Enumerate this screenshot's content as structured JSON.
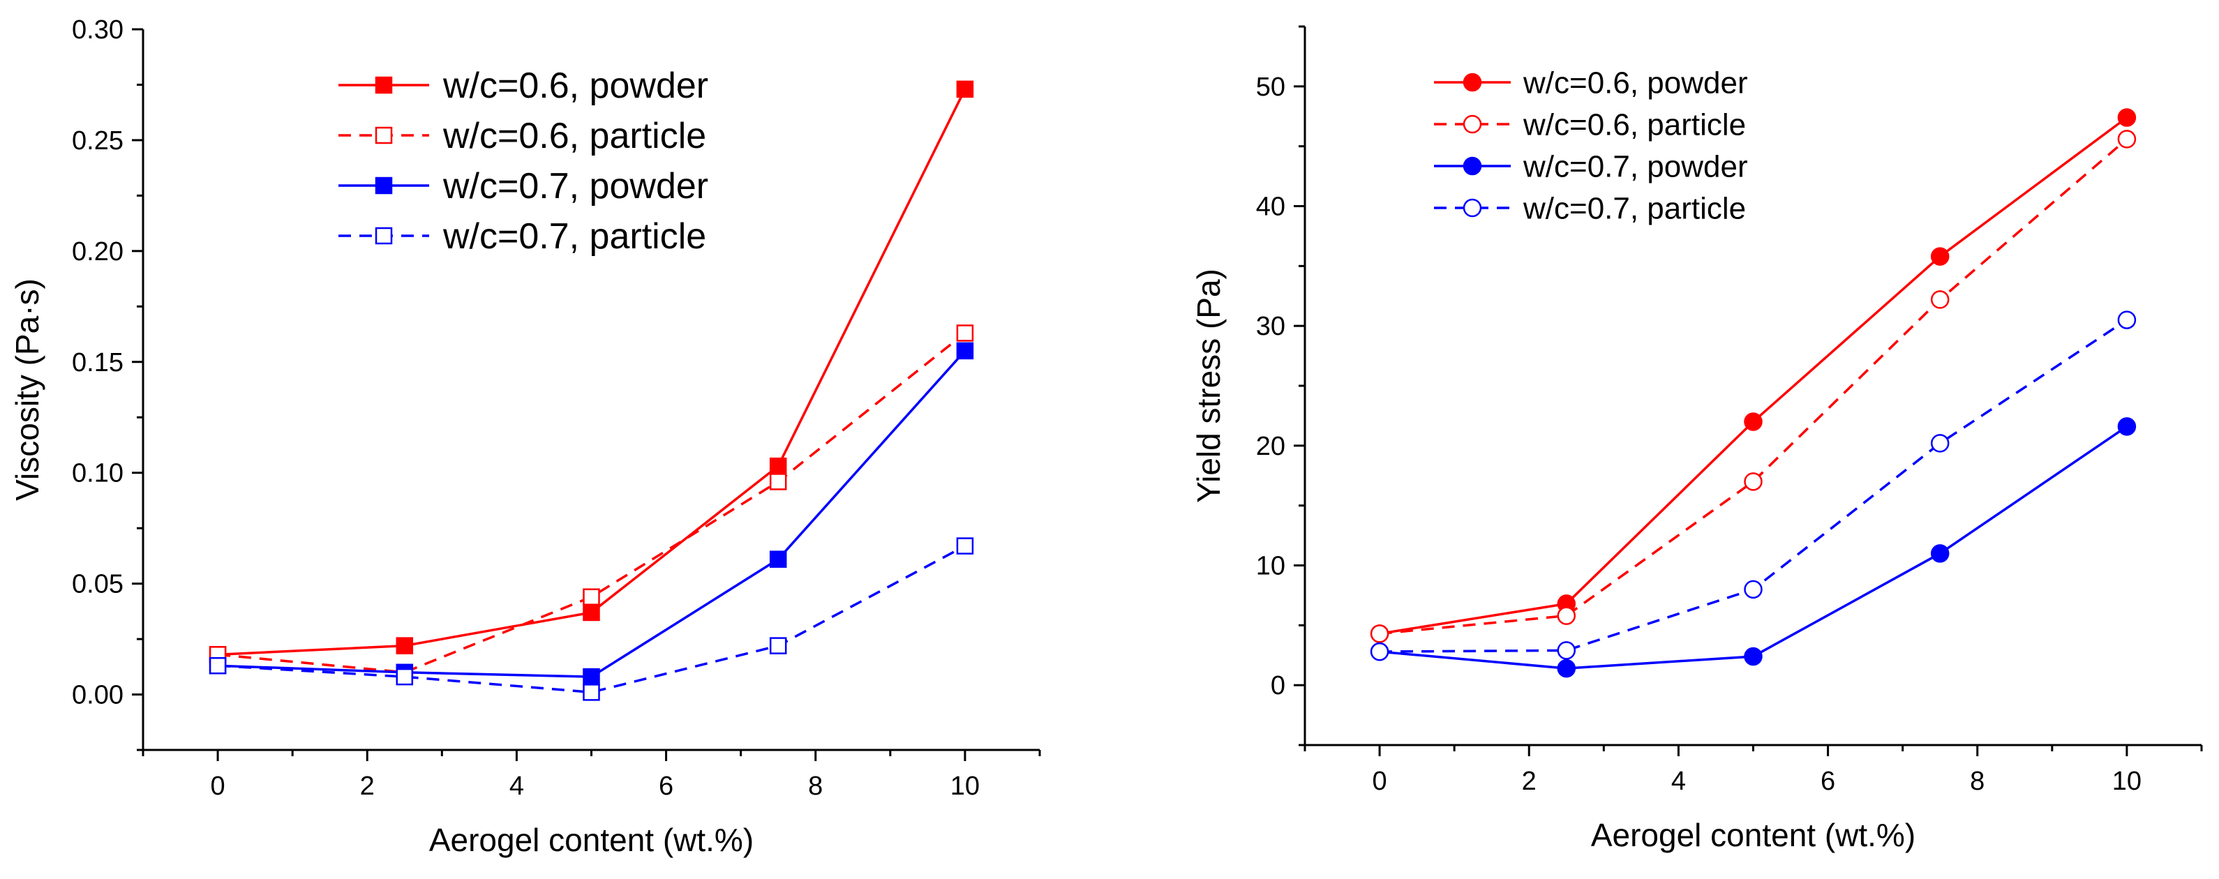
{
  "chart_data": [
    {
      "type": "line",
      "xlabel": "Aerogel content (wt.%)",
      "ylabel": "Viscosity (Pa·s)",
      "xlim": [
        -1,
        11
      ],
      "ylim": [
        -0.025,
        0.3
      ],
      "xticks": [
        0,
        2,
        4,
        6,
        8,
        10
      ],
      "xtick_labels": [
        "0",
        "2",
        "4",
        "6",
        "8",
        "10"
      ],
      "yticks": [
        0,
        0.05,
        0.1,
        0.15,
        0.2,
        0.25,
        0.3
      ],
      "ytick_labels": [
        "0.00",
        "0.05",
        "0.10",
        "0.15",
        "0.20",
        "0.25",
        "0.30"
      ],
      "grid": false,
      "legend_position": "top-center",
      "marker": "square",
      "x": [
        0,
        2.5,
        5,
        7.5,
        10
      ],
      "series": [
        {
          "name": "w/c=0.6, powder",
          "values": [
            0.018,
            0.022,
            0.037,
            0.103,
            0.273
          ],
          "color": "#ff0000",
          "dash": "solid",
          "filled": true
        },
        {
          "name": "w/c=0.6, particle",
          "values": [
            0.018,
            0.01,
            0.044,
            0.096,
            0.163
          ],
          "color": "#ff0000",
          "dash": "dashed",
          "filled": false
        },
        {
          "name": "w/c=0.7, powder",
          "values": [
            0.013,
            0.01,
            0.008,
            0.061,
            0.155
          ],
          "color": "#0000ff",
          "dash": "solid",
          "filled": true
        },
        {
          "name": "w/c=0.7, particle",
          "values": [
            0.013,
            0.008,
            0.001,
            0.022,
            0.067
          ],
          "color": "#0000ff",
          "dash": "dashed",
          "filled": false
        }
      ]
    },
    {
      "type": "line",
      "xlabel": "Aerogel content (wt.%)",
      "ylabel": "Yield stress (Pa)",
      "xlim": [
        -1,
        11
      ],
      "ylim": [
        -5,
        55
      ],
      "xticks": [
        0,
        2,
        4,
        6,
        8,
        10
      ],
      "xtick_labels": [
        "0",
        "2",
        "4",
        "6",
        "8",
        "10"
      ],
      "yticks": [
        0,
        10,
        20,
        30,
        40,
        50
      ],
      "ytick_labels": [
        "0",
        "10",
        "20",
        "30",
        "40",
        "50"
      ],
      "grid": false,
      "legend_position": "top-left",
      "marker": "circle",
      "x": [
        0,
        2.5,
        5,
        7.5,
        10
      ],
      "series": [
        {
          "name": "w/c=0.6, powder",
          "values": [
            4.3,
            6.8,
            22.0,
            35.8,
            47.4
          ],
          "color": "#ff0000",
          "dash": "solid",
          "filled": true
        },
        {
          "name": "w/c=0.6, particle",
          "values": [
            4.3,
            5.8,
            17.0,
            32.2,
            45.6
          ],
          "color": "#ff0000",
          "dash": "dashed",
          "filled": false
        },
        {
          "name": "w/c=0.7, powder",
          "values": [
            2.8,
            1.4,
            2.4,
            11.0,
            21.6
          ],
          "color": "#0000ff",
          "dash": "solid",
          "filled": true
        },
        {
          "name": "w/c=0.7, particle",
          "values": [
            2.8,
            2.9,
            8.0,
            20.2,
            30.5
          ],
          "color": "#0000ff",
          "dash": "dashed",
          "filled": false
        }
      ]
    }
  ]
}
